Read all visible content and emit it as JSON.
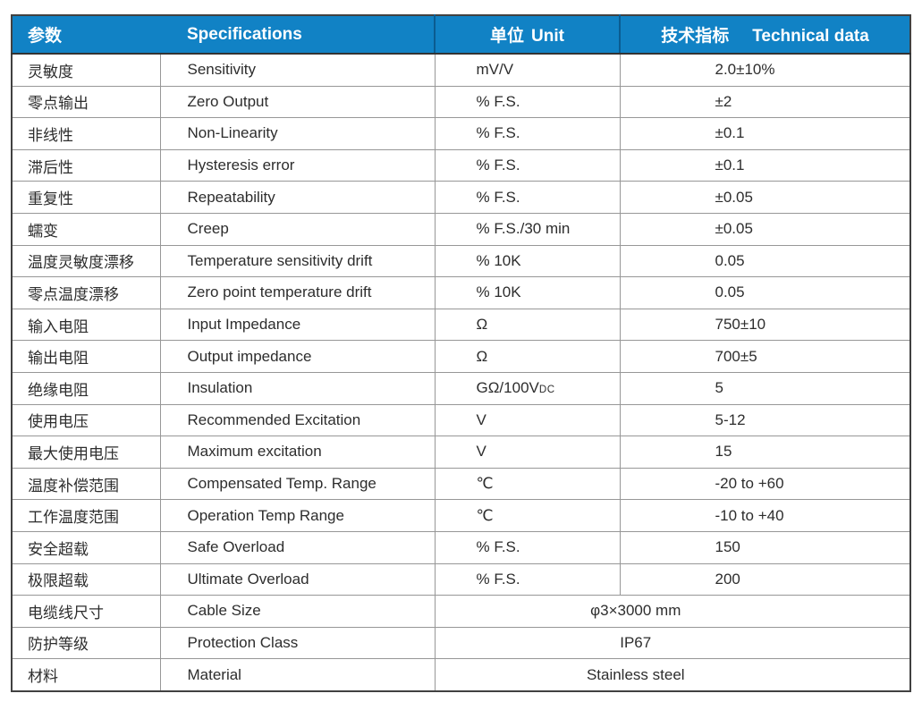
{
  "colors": {
    "header_bg": "#1182c5",
    "header_divider": "#0b5c90",
    "header_text": "#ffffff",
    "grid_line": "#979797",
    "outer_border": "#414141",
    "body_text": "#2d2d2d"
  },
  "table": {
    "header": {
      "param": "参数",
      "spec": "Specifications",
      "unit_zh": "单位",
      "unit_en": "Unit",
      "tech_zh": "技术指标",
      "tech_en": "Technical data"
    },
    "rows": [
      {
        "param_zh": "灵敏度",
        "spec_en": "Sensitivity",
        "unit": "mV/V",
        "value": "2.0±10%"
      },
      {
        "param_zh": "零点输出",
        "spec_en": "Zero Output",
        "unit": "% F.S.",
        "value": "±2"
      },
      {
        "param_zh": "非线性",
        "spec_en": "Non-Linearity",
        "unit": "% F.S.",
        "value": "±0.1"
      },
      {
        "param_zh": "滞后性",
        "spec_en": "Hysteresis error",
        "unit": "% F.S.",
        "value": "±0.1"
      },
      {
        "param_zh": "重复性",
        "spec_en": "Repeatability",
        "unit": "% F.S.",
        "value": "±0.05"
      },
      {
        "param_zh": "蠕变",
        "spec_en": "Creep",
        "unit": "% F.S./30 min",
        "value": "±0.05"
      },
      {
        "param_zh": "温度灵敏度漂移",
        "spec_en": "Temperature sensitivity drift",
        "unit": "% 10K",
        "value": "0.05"
      },
      {
        "param_zh": "零点温度漂移",
        "spec_en": "Zero point temperature drift",
        "unit": "% 10K",
        "value": "0.05"
      },
      {
        "param_zh": "输入电阻",
        "spec_en": "Input Impedance",
        "unit": "Ω",
        "value": "750±10"
      },
      {
        "param_zh": "输出电阻",
        "spec_en": "Output impedance",
        "unit": "Ω",
        "value": "700±5"
      },
      {
        "param_zh": "绝缘电阻",
        "spec_en": "Insulation",
        "unit": "GΩ/100V",
        "unit_sub": "DC",
        "value": "5"
      },
      {
        "param_zh": "使用电压",
        "spec_en": "Recommended Excitation",
        "unit": "V",
        "value": "5-12"
      },
      {
        "param_zh": "最大使用电压",
        "spec_en": "Maximum excitation",
        "unit": "V",
        "value": "15"
      },
      {
        "param_zh": "温度补偿范围",
        "spec_en": "Compensated Temp. Range",
        "unit": "℃",
        "value": "-20 to +60"
      },
      {
        "param_zh": "工作温度范围",
        "spec_en": "Operation Temp Range",
        "unit": "℃",
        "value": "-10 to +40"
      },
      {
        "param_zh": "安全超载",
        "spec_en": "Safe Overload",
        "unit": "% F.S.",
        "value": "150"
      },
      {
        "param_zh": "极限超载",
        "spec_en": "Ultimate Overload",
        "unit": "% F.S.",
        "value": "200"
      },
      {
        "param_zh": "电缆线尺寸",
        "spec_en": "Cable Size",
        "merged": true,
        "value": "φ3×3000 mm"
      },
      {
        "param_zh": "防护等级",
        "spec_en": "Protection Class",
        "merged": true,
        "value": "IP67"
      },
      {
        "param_zh": "材料",
        "spec_en": "Material",
        "merged": true,
        "value": "Stainless steel"
      }
    ]
  }
}
